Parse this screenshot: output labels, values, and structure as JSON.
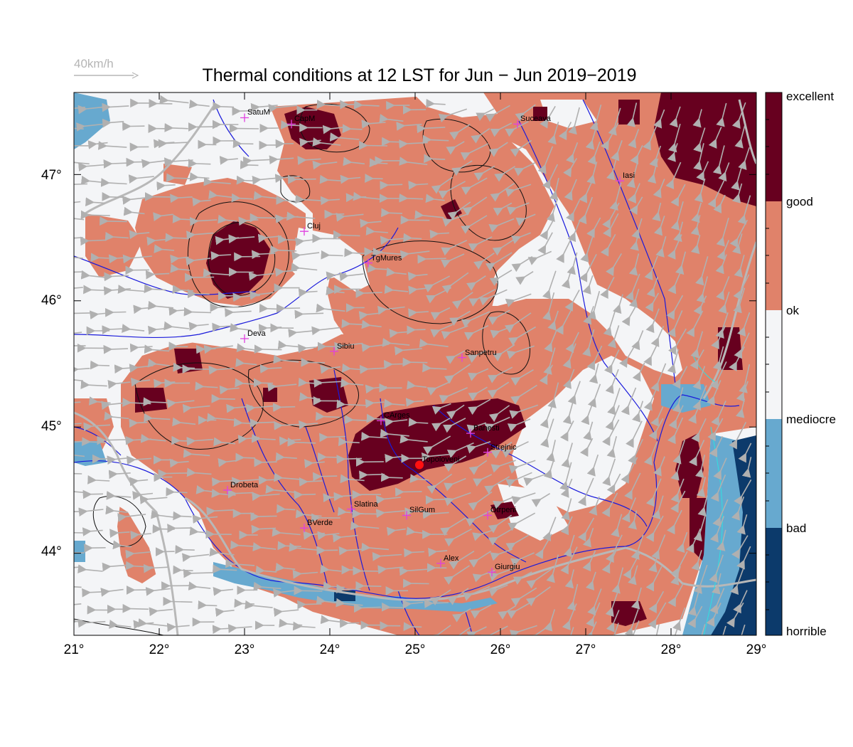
{
  "title": "Thermal conditions at 12 LST for Jun − Jun  2019−2019",
  "wind_scale_label": "40km/h",
  "legend": {
    "classes": [
      {
        "label": "excellent",
        "color": "#67001f"
      },
      {
        "label": "good",
        "color": "#e0826a"
      },
      {
        "label": "ok",
        "color": "#f4f5f7"
      },
      {
        "label": "mediocre",
        "color": "#67a9cf"
      },
      {
        "label": "bad",
        "color": "#0c3a6b"
      },
      {
        "label": "horrible",
        "color": ""
      }
    ]
  },
  "axes": {
    "lon_ticks": [
      "21°",
      "22°",
      "23°",
      "24°",
      "25°",
      "26°",
      "27°",
      "28°",
      "29°"
    ],
    "lat_ticks": [
      "47°",
      "46°",
      "45°",
      "44°"
    ],
    "lon_range": [
      21,
      29
    ],
    "lat_range": [
      43.35,
      47.65
    ]
  },
  "cities": [
    {
      "name": "SatuM",
      "lon": 23.0,
      "lat": 47.45
    },
    {
      "name": "CapM",
      "lon": 23.55,
      "lat": 47.4
    },
    {
      "name": "Suceava",
      "lon": 26.2,
      "lat": 47.4
    },
    {
      "name": "Iasi",
      "lon": 27.4,
      "lat": 46.95
    },
    {
      "name": "Cluj",
      "lon": 23.7,
      "lat": 46.55
    },
    {
      "name": "TgMures",
      "lon": 24.45,
      "lat": 46.3
    },
    {
      "name": "Deva",
      "lon": 23.0,
      "lat": 45.7
    },
    {
      "name": "Sibiu",
      "lon": 24.05,
      "lat": 45.6
    },
    {
      "name": "Sanpetru",
      "lon": 25.55,
      "lat": 45.55
    },
    {
      "name": "CArges",
      "lon": 24.6,
      "lat": 45.05
    },
    {
      "name": "Banesti",
      "lon": 25.65,
      "lat": 44.95
    },
    {
      "name": "Strejnic",
      "lon": 25.85,
      "lat": 44.8
    },
    {
      "name": "Topoloveni",
      "lon": 25.05,
      "lat": 44.7
    },
    {
      "name": "Drobeta",
      "lon": 22.8,
      "lat": 44.5
    },
    {
      "name": "Slatina",
      "lon": 24.25,
      "lat": 44.35
    },
    {
      "name": "SilGum",
      "lon": 24.9,
      "lat": 44.3
    },
    {
      "name": "Otrpeni",
      "lon": 25.85,
      "lat": 44.3
    },
    {
      "name": "BVerde",
      "lon": 23.7,
      "lat": 44.2
    },
    {
      "name": "Alex",
      "lon": 25.3,
      "lat": 43.92
    },
    {
      "name": "Giurgiu",
      "lon": 25.9,
      "lat": 43.85
    }
  ],
  "highlight_site": "Topoloveni",
  "colors": {
    "river": "#1a1adb",
    "border": "#b8b8b8",
    "contour": "#111111",
    "city_marker": "#e040e0",
    "site_marker": "#ff1010",
    "wind_arrow": "#b0b0b0",
    "coast": "#30e0e0"
  }
}
